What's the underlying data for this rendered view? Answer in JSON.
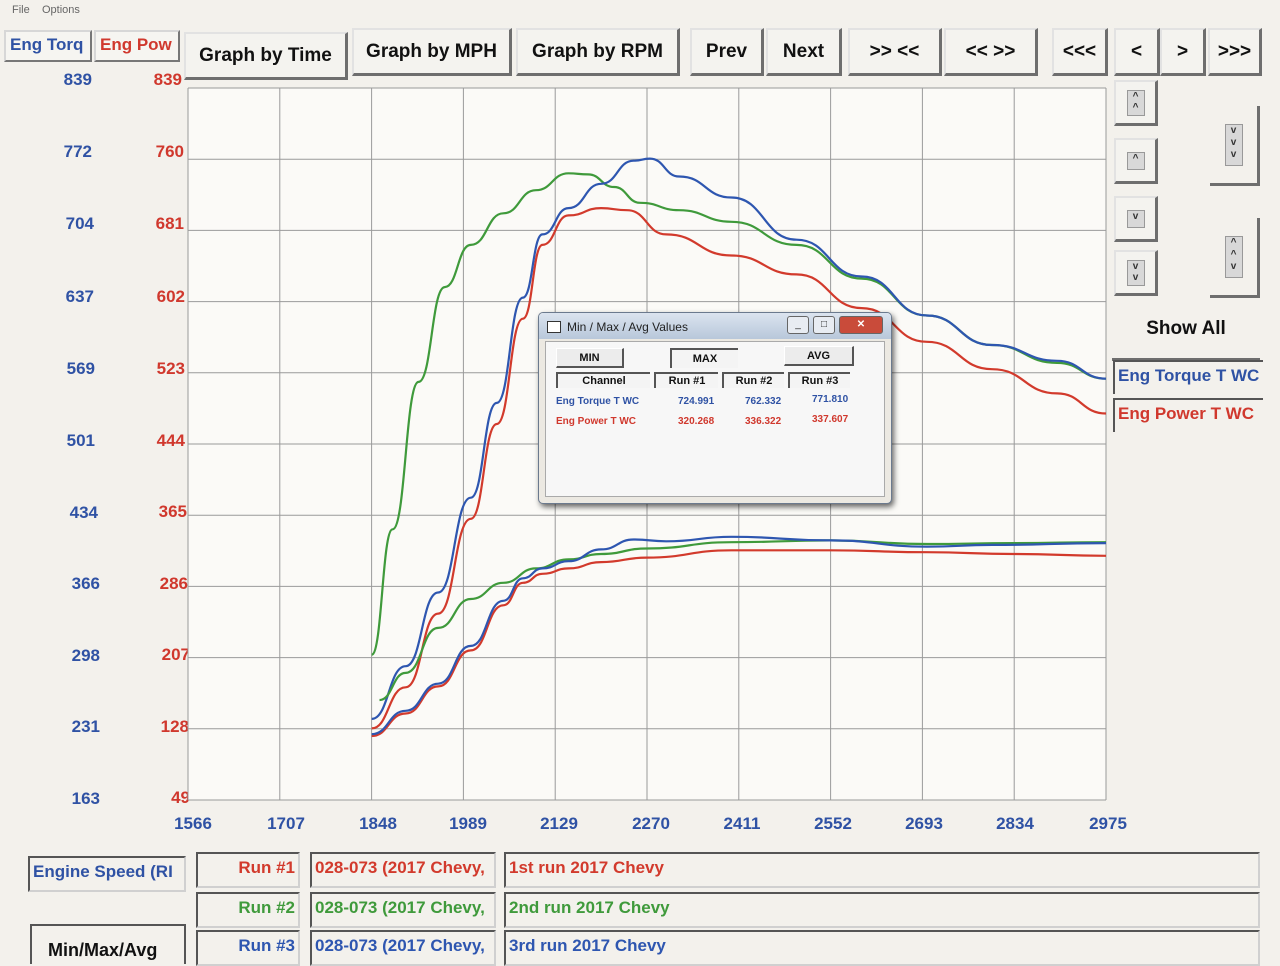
{
  "menu": {
    "file": "File",
    "options": "Options"
  },
  "tabs": {
    "torque": "Eng Torq",
    "power": "Eng Pow"
  },
  "toolbar": {
    "graph_time": "Graph by Time",
    "graph_mph": "Graph by MPH",
    "graph_rpm": "Graph by RPM",
    "prev": "Prev",
    "next": "Next",
    "zoom_in": ">> <<",
    "zoom_out": "<< >>",
    "far_left": "<<<",
    "left": "<",
    "right": ">",
    "far_right": ">>>"
  },
  "side": {
    "show_all": "Show All",
    "legend_torque": "Eng Torque T WC",
    "legend_power": "Eng Power T WC"
  },
  "colors": {
    "torque": "#2f52a4",
    "power": "#d0382d",
    "run1": "#d23a2c",
    "run2": "#3f9a3b",
    "run3": "#2e56b0"
  },
  "dialog": {
    "title": "Min / Max / Avg Values",
    "btn_min": "MIN",
    "btn_max": "MAX",
    "btn_avg": "AVG",
    "col_channel": "Channel",
    "col_run1": "Run #1",
    "col_run2": "Run #2",
    "col_run3": "Run #3",
    "rows": [
      {
        "channel": "Eng Torque T WC",
        "run1": "724.991",
        "run2": "762.332",
        "run3": "771.810"
      },
      {
        "channel": "Eng Power T WC",
        "run1": "320.268",
        "run2": "336.322",
        "run3": "337.607"
      }
    ]
  },
  "bottom": {
    "x_channel": "Engine Speed (RI",
    "min_max_avg": "Min/Max/Avg",
    "runs": [
      {
        "label": "Run #1",
        "file": "028-073 (2017 Chevy,",
        "desc": "1st run 2017 Chevy"
      },
      {
        "label": "Run #2",
        "file": "028-073 (2017 Chevy,",
        "desc": "2nd run 2017 Chevy"
      },
      {
        "label": "Run #3",
        "file": "028-073 (2017 Chevy,",
        "desc": "3rd run 2017 Chevy"
      }
    ]
  },
  "chart_data": {
    "type": "line",
    "xlabel": "Engine Speed (RI",
    "x_ticks": [
      "1566",
      "1707",
      "1848",
      "1989",
      "2129",
      "2270",
      "2411",
      "2552",
      "2693",
      "2834",
      "2975"
    ],
    "torque_ticks": [
      "839",
      "772",
      "704",
      "637",
      "569",
      "501",
      "434",
      "366",
      "298",
      "231",
      "163"
    ],
    "power_ticks": [
      "839",
      "760",
      "681",
      "602",
      "523",
      "444",
      "365",
      "286",
      "207",
      "128",
      "49"
    ],
    "xlim": [
      1566,
      2975
    ],
    "torque_ylim": [
      163,
      839
    ],
    "power_ylim": [
      49,
      839
    ],
    "series": [
      {
        "name": "Run #1",
        "channel": "Eng Torque T WC",
        "axis": "torque",
        "x": [
          1848,
          1900,
          1950,
          2000,
          2040,
          2080,
          2110,
          2150,
          2200,
          2240,
          2300,
          2400,
          2500,
          2600,
          2700,
          2800,
          2900,
          2975
        ],
        "y": [
          231,
          270,
          340,
          430,
          520,
          620,
          690,
          718,
          725,
          723,
          700,
          680,
          662,
          630,
          598,
          572,
          549,
          530
        ]
      },
      {
        "name": "Run #2",
        "channel": "Eng Torque T WC",
        "axis": "torque",
        "x": [
          1848,
          1880,
          1920,
          1960,
          2000,
          2050,
          2100,
          2150,
          2180,
          2220,
          2260,
          2320,
          2400,
          2500,
          2600,
          2700,
          2800,
          2900,
          2975
        ],
        "y": [
          301,
          420,
          560,
          650,
          690,
          720,
          742,
          758,
          757,
          745,
          730,
          723,
          712,
          690,
          658,
          623,
          595,
          578,
          563
        ]
      },
      {
        "name": "Run #3",
        "channel": "Eng Torque T WC",
        "axis": "torque",
        "x": [
          1848,
          1900,
          1950,
          2000,
          2040,
          2080,
          2110,
          2150,
          2200,
          2250,
          2275,
          2320,
          2400,
          2500,
          2600,
          2700,
          2800,
          2900,
          2975
        ],
        "y": [
          240,
          290,
          360,
          450,
          540,
          640,
          700,
          725,
          748,
          770,
          772,
          755,
          735,
          695,
          660,
          623,
          595,
          580,
          563
        ]
      },
      {
        "name": "Run #1",
        "channel": "Eng Power T WC",
        "axis": "power",
        "x": [
          1848,
          1900,
          1950,
          2000,
          2050,
          2080,
          2110,
          2150,
          2200,
          2270,
          2400,
          2552,
          2700,
          2834,
          2975
        ],
        "y": [
          120,
          145,
          175,
          215,
          265,
          290,
          300,
          306,
          313,
          318,
          326,
          326,
          324,
          322,
          320
        ]
      },
      {
        "name": "Run #2",
        "channel": "Eng Power T WC",
        "axis": "power",
        "x": [
          1860,
          1900,
          1950,
          2000,
          2050,
          2100,
          2150,
          2200,
          2270,
          2400,
          2552,
          2700,
          2834,
          2975
        ],
        "y": [
          160,
          190,
          240,
          272,
          290,
          306,
          316,
          322,
          328,
          335,
          337,
          333,
          334,
          335
        ]
      },
      {
        "name": "Run #3",
        "channel": "Eng Power T WC",
        "axis": "power",
        "x": [
          1848,
          1900,
          1950,
          2000,
          2050,
          2080,
          2110,
          2150,
          2200,
          2250,
          2300,
          2400,
          2552,
          2700,
          2800,
          2975
        ],
        "y": [
          122,
          148,
          178,
          220,
          270,
          295,
          306,
          314,
          327,
          338,
          336,
          341,
          337,
          330,
          332,
          334
        ]
      }
    ]
  }
}
